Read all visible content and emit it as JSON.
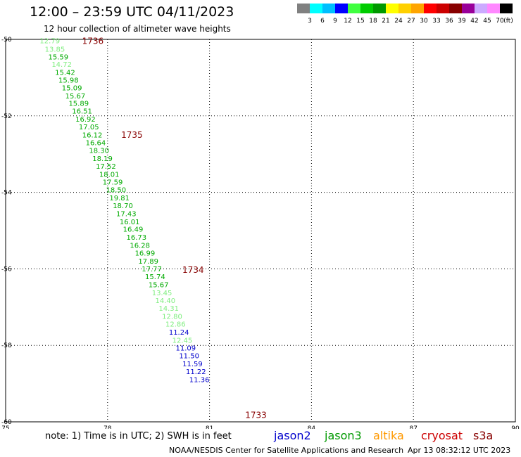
{
  "header": {
    "title": "12:00 – 23:59 UTC 04/11/2023",
    "subtitle": "12 hour collection of altimeter wave heights"
  },
  "colorbar": {
    "labels": [
      "3",
      "6",
      "9",
      "12",
      "15",
      "18",
      "21",
      "24",
      "27",
      "30",
      "33",
      "36",
      "39",
      "42",
      "45",
      "70"
    ],
    "unit": "(ft)",
    "colors": [
      "#808080",
      "#00ffff",
      "#00bfff",
      "#0000ff",
      "#40ff40",
      "#00cc00",
      "#009900",
      "#ffff00",
      "#ffd000",
      "#ffa500",
      "#ff0000",
      "#cc0000",
      "#880000",
      "#990099",
      "#ccaaff",
      "#ff88ff",
      "#000000"
    ]
  },
  "footer": {
    "note": "note: 1) Time is in UTC; 2) SWH is in feet",
    "credit": "NOAA/NESDIS Center for Satellite Applications and Research",
    "timestamp": "Apr 13 08:32:12 UTC 2023"
  },
  "legend": [
    {
      "label": "jason2",
      "color": "#0000cc"
    },
    {
      "label": "jason3",
      "color": "#009900"
    },
    {
      "label": "altika",
      "color": "#ff9900"
    },
    {
      "label": "cryosat",
      "color": "#cc0000"
    },
    {
      "label": "s3a",
      "color": "#880000"
    }
  ],
  "chart_data": {
    "type": "scatter",
    "x_ticks": [
      "75",
      "78",
      "81",
      "84",
      "87",
      "90"
    ],
    "y_ticks": [
      "-50",
      "-52",
      "-54",
      "-56",
      "-58",
      "-60"
    ],
    "xlim": [
      75,
      90
    ],
    "ylim": [
      -60,
      -50
    ],
    "grid": true,
    "points": [
      {
        "lon": 76.3,
        "lat": -50.1,
        "value": "12.79",
        "color": "#80ee80"
      },
      {
        "lon": 76.45,
        "lat": -50.32,
        "value": "13.85",
        "color": "#80ee80"
      },
      {
        "lon": 76.55,
        "lat": -50.52,
        "value": "15.59",
        "color": "#00aa00"
      },
      {
        "lon": 76.65,
        "lat": -50.72,
        "value": "14.72",
        "color": "#80ee80"
      },
      {
        "lon": 76.75,
        "lat": -50.93,
        "value": "15.42",
        "color": "#00aa00"
      },
      {
        "lon": 76.85,
        "lat": -51.13,
        "value": "15.98",
        "color": "#00aa00"
      },
      {
        "lon": 76.95,
        "lat": -51.33,
        "value": "15.09",
        "color": "#00aa00"
      },
      {
        "lon": 77.05,
        "lat": -51.54,
        "value": "15.67",
        "color": "#00aa00"
      },
      {
        "lon": 77.15,
        "lat": -51.74,
        "value": "15.89",
        "color": "#00aa00"
      },
      {
        "lon": 77.25,
        "lat": -51.94,
        "value": "16.51",
        "color": "#00aa00"
      },
      {
        "lon": 77.35,
        "lat": -52.15,
        "value": "16.92",
        "color": "#00aa00"
      },
      {
        "lon": 77.45,
        "lat": -52.35,
        "value": "17.05",
        "color": "#00aa00"
      },
      {
        "lon": 77.55,
        "lat": -52.56,
        "value": "16.12",
        "color": "#00aa00"
      },
      {
        "lon": 77.65,
        "lat": -52.77,
        "value": "16.64",
        "color": "#00aa00"
      },
      {
        "lon": 77.75,
        "lat": -52.97,
        "value": "18.30",
        "color": "#00aa00"
      },
      {
        "lon": 77.85,
        "lat": -53.18,
        "value": "18.19",
        "color": "#00aa00"
      },
      {
        "lon": 77.95,
        "lat": -53.38,
        "value": "17.52",
        "color": "#00aa00"
      },
      {
        "lon": 78.05,
        "lat": -53.59,
        "value": "18.01",
        "color": "#00aa00"
      },
      {
        "lon": 78.15,
        "lat": -53.8,
        "value": "17.59",
        "color": "#00aa00"
      },
      {
        "lon": 78.25,
        "lat": -54.0,
        "value": "18.50",
        "color": "#00aa00"
      },
      {
        "lon": 78.35,
        "lat": -54.21,
        "value": "19.81",
        "color": "#00aa00"
      },
      {
        "lon": 78.45,
        "lat": -54.41,
        "value": "18.70",
        "color": "#00aa00"
      },
      {
        "lon": 78.55,
        "lat": -54.62,
        "value": "17.43",
        "color": "#00aa00"
      },
      {
        "lon": 78.65,
        "lat": -54.83,
        "value": "16.01",
        "color": "#00aa00"
      },
      {
        "lon": 78.75,
        "lat": -55.03,
        "value": "16.49",
        "color": "#00aa00"
      },
      {
        "lon": 78.85,
        "lat": -55.24,
        "value": "16.73",
        "color": "#00aa00"
      },
      {
        "lon": 78.95,
        "lat": -55.45,
        "value": "16.28",
        "color": "#00aa00"
      },
      {
        "lon": 79.1,
        "lat": -55.65,
        "value": "16.99",
        "color": "#00aa00"
      },
      {
        "lon": 79.2,
        "lat": -55.86,
        "value": "17.89",
        "color": "#00aa00"
      },
      {
        "lon": 79.3,
        "lat": -56.07,
        "value": "17.77",
        "color": "#00aa00"
      },
      {
        "lon": 79.4,
        "lat": -56.27,
        "value": "15.74",
        "color": "#00aa00"
      },
      {
        "lon": 79.5,
        "lat": -56.48,
        "value": "15.67",
        "color": "#00aa00"
      },
      {
        "lon": 79.6,
        "lat": -56.69,
        "value": "13.45",
        "color": "#80ee80"
      },
      {
        "lon": 79.7,
        "lat": -56.89,
        "value": "14.40",
        "color": "#80ee80"
      },
      {
        "lon": 79.8,
        "lat": -57.1,
        "value": "14.31",
        "color": "#80ee80"
      },
      {
        "lon": 79.9,
        "lat": -57.31,
        "value": "12.80",
        "color": "#80ee80"
      },
      {
        "lon": 80.0,
        "lat": -57.51,
        "value": "12.86",
        "color": "#80ee80"
      },
      {
        "lon": 80.1,
        "lat": -57.72,
        "value": "11.24",
        "color": "#0000cc"
      },
      {
        "lon": 80.2,
        "lat": -57.93,
        "value": "12.45",
        "color": "#80ee80"
      },
      {
        "lon": 80.3,
        "lat": -58.13,
        "value": "11.09",
        "color": "#0000cc"
      },
      {
        "lon": 80.4,
        "lat": -58.34,
        "value": "11.50",
        "color": "#0000cc"
      },
      {
        "lon": 80.5,
        "lat": -58.55,
        "value": "11.59",
        "color": "#0000cc"
      },
      {
        "lon": 80.6,
        "lat": -58.75,
        "value": "11.22",
        "color": "#0000cc"
      },
      {
        "lon": 80.7,
        "lat": -58.96,
        "value": "11.36",
        "color": "#0000cc"
      }
    ],
    "time_labels": [
      {
        "lon": 77.25,
        "lat": -50.12,
        "text": "1736"
      },
      {
        "lon": 78.4,
        "lat": -52.57,
        "text": "1735"
      },
      {
        "lon": 80.2,
        "lat": -56.1,
        "text": "1734"
      },
      {
        "lon": 82.05,
        "lat": -59.9,
        "text": "1733"
      }
    ]
  }
}
